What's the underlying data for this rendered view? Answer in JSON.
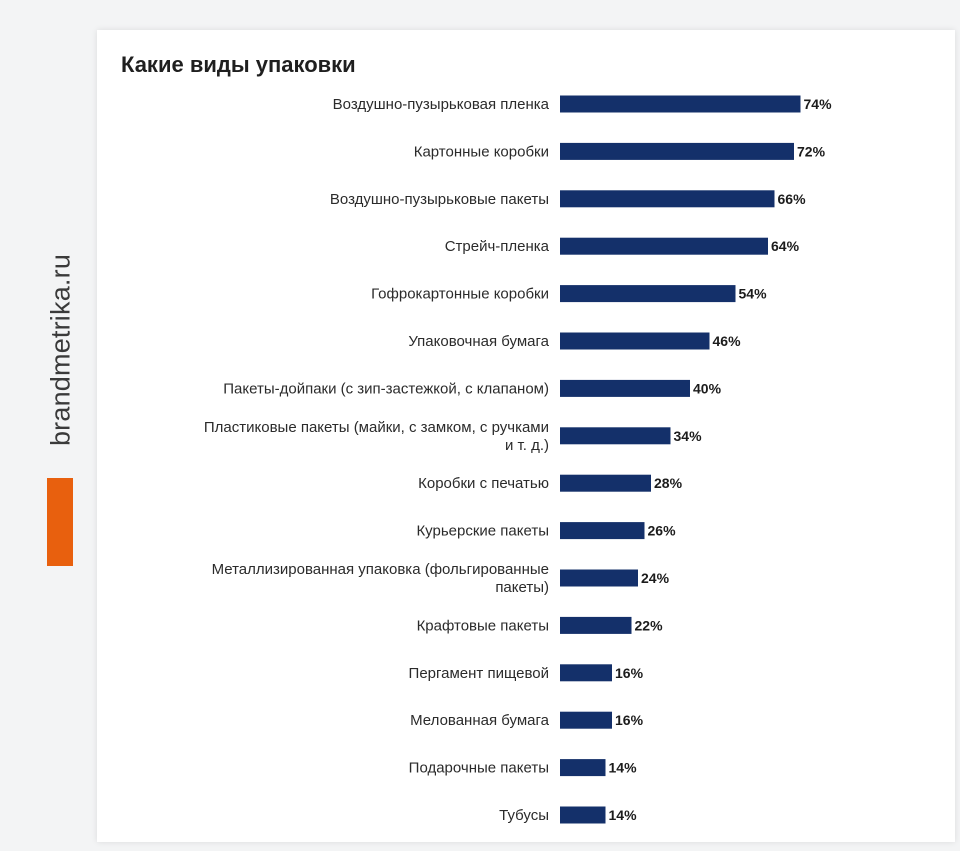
{
  "brand": {
    "text": "brandmetrika.ru",
    "accent_color": "#e8600e"
  },
  "chart_data": {
    "type": "bar",
    "orientation": "horizontal",
    "title": "Какие виды упаковки",
    "bar_color": "#14306a",
    "value_suffix": "%",
    "xlim": [
      0,
      100
    ],
    "grid": false,
    "categories": [
      [
        "Воздушно-пузырьковая пленка"
      ],
      [
        "Картонные коробки"
      ],
      [
        "Воздушно-пузырьковые пакеты"
      ],
      [
        "Стрейч-пленка"
      ],
      [
        "Гофрокартонные коробки"
      ],
      [
        "Упаковочная бумага"
      ],
      [
        "Пакеты-дойпаки (с зип-застежкой, с клапаном)"
      ],
      [
        "Пластиковые пакеты (майки, с замком, с ручками",
        "и т. д.)"
      ],
      [
        "Коробки с печатью"
      ],
      [
        "Курьерские пакеты"
      ],
      [
        "Металлизированная упаковка (фольгированные",
        "пакеты)"
      ],
      [
        "Крафтовые пакеты"
      ],
      [
        "Пергамент пищевой"
      ],
      [
        "Мелованная бумага"
      ],
      [
        "Подарочные пакеты"
      ],
      [
        "Тубусы"
      ]
    ],
    "values": [
      74,
      72,
      66,
      64,
      54,
      46,
      40,
      34,
      28,
      26,
      24,
      22,
      16,
      16,
      14,
      14
    ]
  }
}
